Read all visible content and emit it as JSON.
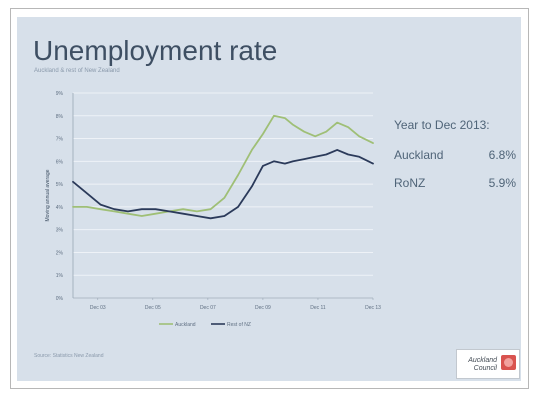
{
  "slide": {
    "title": "Unemployment rate",
    "subtitle": "Auckland & rest of New Zealand",
    "source": "Source: Statistics New Zealand",
    "logo_text": "Auckland Council"
  },
  "stats": {
    "heading": "Year to Dec 2013:",
    "rows": [
      {
        "label": "Auckland",
        "value": "6.8%"
      },
      {
        "label": "RoNZ",
        "value": "5.9%"
      }
    ]
  },
  "colors": {
    "background": "#d7e0ea",
    "auckland": "#9fbf76",
    "rest_of_nz": "#2b3a5a",
    "text": "#3e4f63"
  },
  "chart_data": {
    "type": "line",
    "title": "Unemployment rate",
    "subtitle": "Auckland & rest of New Zealand",
    "ylabel": "Moving annual average",
    "xlabel": "",
    "ylim": [
      0,
      9
    ],
    "yticks": [
      "0%",
      "1%",
      "2%",
      "3%",
      "4%",
      "5%",
      "6%",
      "7%",
      "8%",
      "9%"
    ],
    "xlim": [
      2003.0,
      2013.9
    ],
    "xticks": [
      {
        "label": "Dec 03",
        "x": 2003.9
      },
      {
        "label": "Dec 05",
        "x": 2005.9
      },
      {
        "label": "Dec 07",
        "x": 2007.9
      },
      {
        "label": "Dec 09",
        "x": 2009.9
      },
      {
        "label": "Dec 11",
        "x": 2011.9
      },
      {
        "label": "Dec 13",
        "x": 2013.9
      }
    ],
    "grid": true,
    "legend_position": "bottom",
    "series": [
      {
        "name": "Auckland",
        "color": "#9fbf76",
        "x": [
          2003.0,
          2003.5,
          2004.0,
          2004.5,
          2005.0,
          2005.5,
          2006.0,
          2006.5,
          2007.0,
          2007.5,
          2008.0,
          2008.5,
          2009.0,
          2009.5,
          2009.9,
          2010.3,
          2010.7,
          2011.0,
          2011.4,
          2011.8,
          2012.2,
          2012.6,
          2013.0,
          2013.4,
          2013.9
        ],
        "y": [
          4.0,
          4.0,
          3.9,
          3.8,
          3.7,
          3.6,
          3.7,
          3.8,
          3.9,
          3.8,
          3.9,
          4.4,
          5.4,
          6.5,
          7.2,
          8.0,
          7.9,
          7.6,
          7.3,
          7.1,
          7.3,
          7.7,
          7.5,
          7.1,
          6.8
        ]
      },
      {
        "name": "Rest of NZ",
        "color": "#2b3a5a",
        "x": [
          2003.0,
          2003.5,
          2004.0,
          2004.5,
          2005.0,
          2005.5,
          2006.0,
          2006.5,
          2007.0,
          2007.5,
          2008.0,
          2008.5,
          2009.0,
          2009.5,
          2009.9,
          2010.3,
          2010.7,
          2011.0,
          2011.4,
          2011.8,
          2012.2,
          2012.6,
          2013.0,
          2013.4,
          2013.9
        ],
        "y": [
          5.1,
          4.6,
          4.1,
          3.9,
          3.8,
          3.9,
          3.9,
          3.8,
          3.7,
          3.6,
          3.5,
          3.6,
          4.0,
          4.9,
          5.8,
          6.0,
          5.9,
          6.0,
          6.1,
          6.2,
          6.3,
          6.5,
          6.3,
          6.2,
          5.9
        ]
      }
    ]
  }
}
